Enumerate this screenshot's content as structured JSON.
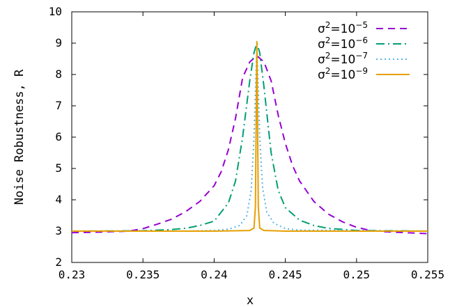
{
  "chart_data": {
    "type": "line",
    "title": "",
    "xlabel": "x",
    "ylabel": "Noise Robustness, R",
    "xlim": [
      0.23,
      0.255
    ],
    "ylim": [
      2,
      10
    ],
    "x_ticks": [
      "0.23",
      "0.235",
      "0.24",
      "0.245",
      "0.25",
      "0.255"
    ],
    "y_ticks": [
      "2",
      "3",
      "4",
      "5",
      "6",
      "7",
      "8",
      "9",
      "10"
    ],
    "grid": false,
    "legend_position": "top-right",
    "series": [
      {
        "name": "σ²=10⁻⁵",
        "legend_base": "σ",
        "legend_sup1": "2",
        "legend_mid": "=10",
        "legend_sup2": "−5",
        "color": "#9400d3",
        "dash": "dashed",
        "x": [
          0.23,
          0.232,
          0.234,
          0.235,
          0.236,
          0.237,
          0.238,
          0.239,
          0.24,
          0.2405,
          0.241,
          0.2415,
          0.242,
          0.2425,
          0.243,
          0.2435,
          0.244,
          0.2445,
          0.245,
          0.2455,
          0.246,
          0.247,
          0.248,
          0.249,
          0.25,
          0.251,
          0.252,
          0.253,
          0.255
        ],
        "y": [
          2.95,
          2.97,
          3.0,
          3.08,
          3.22,
          3.38,
          3.62,
          3.95,
          4.45,
          4.9,
          5.6,
          6.6,
          7.9,
          8.4,
          8.6,
          8.4,
          7.8,
          6.7,
          5.8,
          5.1,
          4.6,
          3.95,
          3.55,
          3.3,
          3.12,
          3.02,
          2.98,
          2.96,
          2.92
        ]
      },
      {
        "name": "σ²=10⁻⁶",
        "legend_base": "σ",
        "legend_sup1": "2",
        "legend_mid": "=10",
        "legend_sup2": "−6",
        "color": "#009e73",
        "dash": "dashdot",
        "x": [
          0.23,
          0.235,
          0.237,
          0.238,
          0.239,
          0.24,
          0.241,
          0.2415,
          0.242,
          0.2425,
          0.2428,
          0.243,
          0.2432,
          0.2435,
          0.244,
          0.2445,
          0.245,
          0.246,
          0.247,
          0.248,
          0.25,
          0.255
        ],
        "y": [
          3.0,
          3.01,
          3.05,
          3.09,
          3.18,
          3.32,
          3.9,
          4.6,
          6.0,
          7.8,
          8.7,
          9.0,
          8.7,
          7.6,
          5.5,
          4.3,
          3.75,
          3.35,
          3.18,
          3.09,
          3.02,
          3.0
        ]
      },
      {
        "name": "σ²=10⁻⁷",
        "legend_base": "σ",
        "legend_sup1": "2",
        "legend_mid": "=10",
        "legend_sup2": "−7",
        "color": "#56b4e9",
        "dash": "dotted",
        "x": [
          0.23,
          0.238,
          0.24,
          0.241,
          0.2418,
          0.2423,
          0.2426,
          0.2428,
          0.2429,
          0.243,
          0.2431,
          0.2432,
          0.2434,
          0.2437,
          0.2442,
          0.245,
          0.246,
          0.255
        ],
        "y": [
          3.0,
          3.0,
          3.02,
          3.06,
          3.18,
          3.5,
          4.3,
          6.0,
          7.5,
          8.8,
          7.5,
          6.0,
          4.4,
          3.6,
          3.25,
          3.08,
          3.03,
          3.0
        ]
      },
      {
        "name": "σ²=10⁻⁹",
        "legend_base": "σ",
        "legend_sup1": "2",
        "legend_mid": "=10",
        "legend_sup2": "−9",
        "color": "#e69f00",
        "dash": "solid",
        "x": [
          0.23,
          0.24,
          0.2425,
          0.2428,
          0.2429,
          0.24295,
          0.243,
          0.24305,
          0.2431,
          0.2432,
          0.2435,
          0.245,
          0.255
        ],
        "y": [
          3.0,
          3.0,
          3.02,
          3.1,
          3.8,
          6.5,
          9.05,
          6.5,
          3.8,
          3.1,
          3.02,
          3.0,
          3.0
        ]
      }
    ]
  }
}
